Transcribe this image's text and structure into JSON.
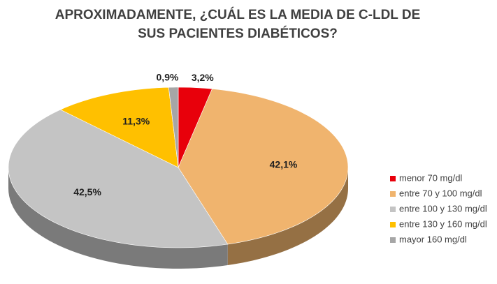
{
  "chart_data": {
    "type": "pie",
    "title": "APROXIMADAMENTE, ¿CUÁL ES LA MEDIA DE C-LDL DE SUS PACIENTES DIABÉTICOS?",
    "categories": [
      "menor 70 mg/dl",
      "entre 70 y 100 mg/dl",
      "entre 100 y 130 mg/dl",
      "entre 130 y 160 mg/dl",
      "mayor 160 mg/dl"
    ],
    "values": [
      3.2,
      42.1,
      42.5,
      11.3,
      0.9
    ],
    "value_labels": [
      "3,2%",
      "42,1%",
      "42,5%",
      "11,3%",
      "0,9%"
    ],
    "colors": [
      "#e8000b",
      "#f0b46e",
      "#c4c4c4",
      "#ffc000",
      "#a6a6a6"
    ],
    "legend": "right"
  }
}
